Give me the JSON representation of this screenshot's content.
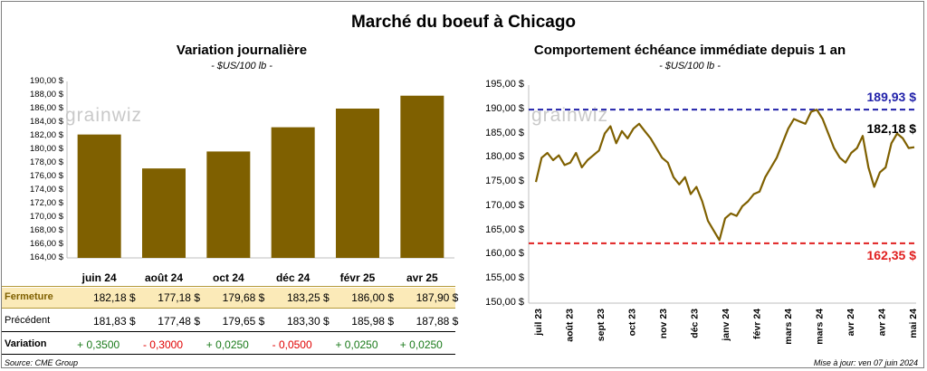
{
  "title": "Marché du boeuf à Chicago",
  "left_panel": {
    "title": "Variation journalière",
    "unit": "- $US/100 lb -",
    "watermark": "grainwiz",
    "y_ticks": [
      "190,00 $",
      "188,00 $",
      "186,00 $",
      "184,00 $",
      "182,00 $",
      "180,00 $",
      "178,00 $",
      "176,00 $",
      "174,00 $",
      "172,00 $",
      "170,00 $",
      "168,00 $",
      "166,00 $",
      "164,00 $"
    ]
  },
  "right_panel": {
    "title": "Comportement  échéance immédiate depuis 1 an",
    "unit": "- $US/100 lb -",
    "watermark": "grainwiz",
    "y_ticks": [
      "195,00 $",
      "190,00 $",
      "185,00 $",
      "180,00 $",
      "175,00 $",
      "170,00 $",
      "165,00 $",
      "160,00 $",
      "155,00 $",
      "150,00 $"
    ],
    "x_ticks": [
      "juil 23",
      "août 23",
      "sept 23",
      "oct 23",
      "nov 23",
      "déc 23",
      "janv 24",
      "févr 24",
      "mars 24",
      "mars 24",
      "avr 24",
      "avr 24",
      "mai 24"
    ],
    "high_label": "189,93 $",
    "low_label": "162,35 $",
    "last_label": "182,18 $"
  },
  "table": {
    "row_labels": {
      "close": "Fermeture",
      "previous": "Précédent",
      "change": "Variation"
    },
    "close": [
      "182,18  $",
      "177,18  $",
      "179,68  $",
      "183,25  $",
      "186,00  $",
      "187,90  $"
    ],
    "previous": [
      "181,83  $",
      "177,48  $",
      "179,65  $",
      "183,30  $",
      "185,98  $",
      "187,88  $"
    ],
    "change": [
      "+ 0,3500",
      "- 0,3000",
      "+ 0,0250",
      "- 0,0500",
      "+ 0,0250",
      "+ 0,0250"
    ]
  },
  "footer": {
    "source": "Source: CME Group",
    "updated": "Mise à jour: ven 07 juin 2024"
  },
  "colors": {
    "bar": "#7f6000",
    "line": "#7f6000",
    "high": "#2222aa",
    "low": "#e02020",
    "highlight_row": "#fbeab8",
    "positive": "#1a7a1a",
    "negative": "#e00000"
  },
  "chart_data": [
    {
      "type": "bar",
      "categories": [
        "juin 24",
        "août 24",
        "oct 24",
        "déc 24",
        "févr 25",
        "avr 25"
      ],
      "values": [
        182.18,
        177.18,
        179.68,
        183.25,
        186.0,
        187.9
      ],
      "title": "Variation journalière",
      "ylabel": "$US/100 lb",
      "ylim": [
        164,
        190
      ]
    },
    {
      "type": "line",
      "title": "Comportement  échéance immédiate depuis 1 an",
      "ylabel": "$US/100 lb",
      "ylim": [
        150,
        195
      ],
      "x_range": [
        "juil 23",
        "juin 24"
      ],
      "series": [
        {
          "values": [
            175,
            180,
            181,
            179.5,
            180.5,
            178.5,
            179,
            181,
            178,
            179.5,
            180.5,
            181.5,
            185,
            186.5,
            183,
            185.5,
            184,
            186,
            187,
            185.5,
            184,
            182,
            180,
            179,
            176,
            174.5,
            176,
            172.5,
            174,
            171,
            167,
            165,
            163,
            167.5,
            168.5,
            168,
            170,
            171,
            172.5,
            173,
            176,
            178,
            180,
            183,
            186,
            188,
            187.5,
            187,
            189.5,
            189.93,
            188,
            185,
            182,
            180,
            179,
            181,
            182,
            184.5,
            178,
            174,
            177,
            178,
            183,
            185,
            184,
            182,
            182.18
          ]
        }
      ],
      "reference_lines": [
        {
          "label": "189,93 $",
          "value": 189.93
        },
        {
          "label": "162,35 $",
          "value": 162.35
        }
      ],
      "annotations": [
        "182,18 $"
      ]
    }
  ]
}
